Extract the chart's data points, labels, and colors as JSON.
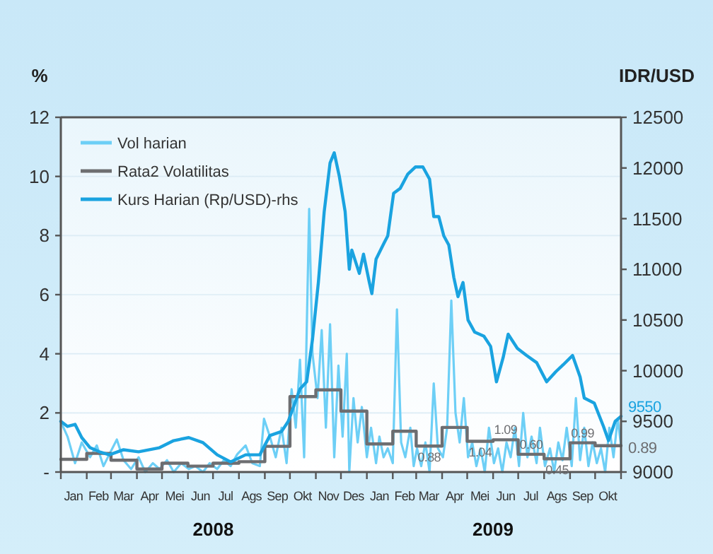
{
  "chart_data": {
    "type": "line",
    "ylabel": "%",
    "y2label": "IDR/USD",
    "xlim": [
      "2008-01-01",
      "2009-11-01"
    ],
    "xticks": [
      {
        "value": "2008-01-01",
        "label": null
      },
      {
        "value": "2008-01-16",
        "label": "Jan"
      },
      {
        "value": "2008-02-01",
        "label": null
      },
      {
        "value": "2008-02-15",
        "label": "Feb"
      },
      {
        "value": "2008-03-01",
        "label": null
      },
      {
        "value": "2008-03-16",
        "label": "Mar"
      },
      {
        "value": "2008-04-01",
        "label": null
      },
      {
        "value": "2008-04-16",
        "label": "Apr"
      },
      {
        "value": "2008-05-01",
        "label": null
      },
      {
        "value": "2008-05-16",
        "label": "Mei"
      },
      {
        "value": "2008-06-01",
        "label": null
      },
      {
        "value": "2008-06-16",
        "label": "Jun"
      },
      {
        "value": "2008-07-01",
        "label": null
      },
      {
        "value": "2008-07-16",
        "label": "Jul"
      },
      {
        "value": "2008-08-01",
        "label": null
      },
      {
        "value": "2008-08-16",
        "label": "Ags"
      },
      {
        "value": "2008-09-01",
        "label": null
      },
      {
        "value": "2008-09-16",
        "label": "Sep"
      },
      {
        "value": "2008-10-01",
        "label": null
      },
      {
        "value": "2008-10-16",
        "label": "Okt"
      },
      {
        "value": "2008-11-01",
        "label": null
      },
      {
        "value": "2008-11-16",
        "label": "Nov"
      },
      {
        "value": "2008-12-01",
        "label": null
      },
      {
        "value": "2008-12-16",
        "label": "Des"
      },
      {
        "value": "2009-01-01",
        "label": null
      },
      {
        "value": "2009-01-16",
        "label": "Jan"
      },
      {
        "value": "2009-02-01",
        "label": null
      },
      {
        "value": "2009-02-15",
        "label": "Feb"
      },
      {
        "value": "2009-03-01",
        "label": null
      },
      {
        "value": "2009-03-16",
        "label": "Mar"
      },
      {
        "value": "2009-04-01",
        "label": null
      },
      {
        "value": "2009-04-16",
        "label": "Apr"
      },
      {
        "value": "2009-05-01",
        "label": null
      },
      {
        "value": "2009-05-16",
        "label": "Mei"
      },
      {
        "value": "2009-06-01",
        "label": null
      },
      {
        "value": "2009-06-16",
        "label": "Jun"
      },
      {
        "value": "2009-07-01",
        "label": null
      },
      {
        "value": "2009-07-16",
        "label": "Jul"
      },
      {
        "value": "2009-08-01",
        "label": null
      },
      {
        "value": "2009-08-16",
        "label": "Ags"
      },
      {
        "value": "2009-09-01",
        "label": null
      },
      {
        "value": "2009-09-16",
        "label": "Sep"
      },
      {
        "value": "2009-10-01",
        "label": null
      },
      {
        "value": "2009-10-16",
        "label": "Okt"
      },
      {
        "value": "2009-11-01",
        "label": null
      }
    ],
    "ylim": [
      0,
      12
    ],
    "yticks": [
      {
        "value": 0,
        "label": "-"
      },
      2,
      4,
      6,
      8,
      10,
      12
    ],
    "y2lim": [
      9000,
      12500
    ],
    "y2ticks": [
      9000,
      9500,
      10000,
      10500,
      11000,
      11500,
      12000,
      12500
    ],
    "grid": "y",
    "legend": "top left",
    "line_style": "solid",
    "marker": "none",
    "annotations": [
      "2008",
      "2009"
    ],
    "series": [
      {
        "name": "Vol harian",
        "color": "#6dcff6",
        "x": [
          "2008-01-01",
          "2008-01-09",
          "2008-01-18",
          "2008-01-26",
          "2008-02-05",
          "2008-02-13",
          "2008-02-21",
          "2008-02-28",
          "2008-03-08",
          "2008-03-16",
          "2008-03-25",
          "2008-04-03",
          "2008-04-11",
          "2008-04-20",
          "2008-04-28",
          "2008-05-07",
          "2008-05-15",
          "2008-05-24",
          "2008-06-02",
          "2008-06-10",
          "2008-06-19",
          "2008-06-27",
          "2008-07-06",
          "2008-07-14",
          "2008-07-22",
          "2008-07-30",
          "2008-08-09",
          "2008-08-17",
          "2008-08-26",
          "2008-08-31",
          "2008-09-07",
          "2008-09-14",
          "2008-09-21",
          "2008-09-27",
          "2008-10-03",
          "2008-10-08",
          "2008-10-13",
          "2008-10-18",
          "2008-10-24",
          "2008-10-28",
          "2008-11-03",
          "2008-11-08",
          "2008-11-13",
          "2008-11-18",
          "2008-11-23",
          "2008-11-28",
          "2008-12-03",
          "2008-12-08",
          "2008-12-11",
          "2008-12-16",
          "2008-12-21",
          "2008-12-26",
          "2009-01-01",
          "2009-01-06",
          "2009-01-12",
          "2009-01-16",
          "2009-01-21",
          "2009-01-26",
          "2009-02-01",
          "2009-02-06",
          "2009-02-11",
          "2009-02-16",
          "2009-02-22",
          "2009-02-26",
          "2009-03-02",
          "2009-03-07",
          "2009-03-12",
          "2009-03-17",
          "2009-03-22",
          "2009-03-27",
          "2009-04-02",
          "2009-04-07",
          "2009-04-12",
          "2009-04-17",
          "2009-04-22",
          "2009-04-27",
          "2009-05-02",
          "2009-05-07",
          "2009-05-12",
          "2009-05-17",
          "2009-05-22",
          "2009-05-27",
          "2009-06-02",
          "2009-06-07",
          "2009-06-12",
          "2009-06-17",
          "2009-06-22",
          "2009-06-27",
          "2009-07-02",
          "2009-07-07",
          "2009-07-12",
          "2009-07-17",
          "2009-07-23",
          "2009-07-27",
          "2009-08-02",
          "2009-08-08",
          "2009-08-13",
          "2009-08-18",
          "2009-08-23",
          "2009-08-28",
          "2009-09-03",
          "2009-09-08",
          "2009-09-13",
          "2009-09-18",
          "2009-09-23",
          "2009-09-28",
          "2009-10-03",
          "2009-10-08",
          "2009-10-13",
          "2009-10-18",
          "2009-10-23",
          "2009-10-28",
          "2009-11-01"
        ],
        "values": [
          1.7,
          1.2,
          0.3,
          1.0,
          0.5,
          0.9,
          0.2,
          0.6,
          1.1,
          0.4,
          0.1,
          0.5,
          0.0,
          0.3,
          0.1,
          0.4,
          0.0,
          0.3,
          0.1,
          0.2,
          0.0,
          0.3,
          0.1,
          0.4,
          0.2,
          0.6,
          0.9,
          0.3,
          0.2,
          1.8,
          1.2,
          0.5,
          1.5,
          0.3,
          2.8,
          1.5,
          3.8,
          0.5,
          8.9,
          4.0,
          2.5,
          4.8,
          1.5,
          5.0,
          0.5,
          3.6,
          1.2,
          4.0,
          0.0,
          2.5,
          1.0,
          2.2,
          0.5,
          1.5,
          0.3,
          1.2,
          0.5,
          0.8,
          0.3,
          5.5,
          1.0,
          0.5,
          1.5,
          0.2,
          0.8,
          0.2,
          1.0,
          0.0,
          3.0,
          0.8,
          0.5,
          1.5,
          5.8,
          2.0,
          1.0,
          2.5,
          0.5,
          1.0,
          0.2,
          0.8,
          0.0,
          1.5,
          0.3,
          0.8,
          0.0,
          1.0,
          0.5,
          1.5,
          0.2,
          2.0,
          0.5,
          1.2,
          0.3,
          1.5,
          0.2,
          0.8,
          0.0,
          1.0,
          0.4,
          1.5,
          0.2,
          2.5,
          0.4,
          1.5,
          0.2,
          1.0,
          0.3,
          0.8,
          0.0,
          1.5,
          0.5,
          1.8,
          0.9
        ]
      },
      {
        "name": "Rata2 Volatilitas",
        "type": "step",
        "color": "#6d6e71",
        "x": [
          "2008-01-01",
          "2008-02-01",
          "2008-03-01",
          "2008-04-01",
          "2008-05-01",
          "2008-06-01",
          "2008-07-01",
          "2008-08-01",
          "2008-09-01",
          "2008-10-01",
          "2008-11-01",
          "2008-12-01",
          "2009-01-01",
          "2009-02-01",
          "2009-03-01",
          "2009-04-01",
          "2009-05-01",
          "2009-06-01",
          "2009-07-01",
          "2009-08-01",
          "2009-09-01",
          "2009-10-01",
          "2009-11-01"
        ],
        "values": [
          0.43,
          0.63,
          0.4,
          0.1,
          0.3,
          0.2,
          0.3,
          0.35,
          0.87,
          2.55,
          2.78,
          2.06,
          0.95,
          1.38,
          0.88,
          1.51,
          1.04,
          1.09,
          0.6,
          0.45,
          0.99,
          0.89,
          0.89
        ],
        "value_labels": [
          null,
          null,
          null,
          null,
          null,
          null,
          null,
          null,
          null,
          null,
          null,
          null,
          null,
          null,
          "0.88",
          null,
          "1.04",
          "1.09",
          "0.60",
          "0.45",
          "0.99",
          null,
          "0.89"
        ]
      },
      {
        "name": "Kurs Harian (Rp/USD)-rhs",
        "axis": "y2",
        "color": "#1aa3e0",
        "x": [
          "2008-01-01",
          "2008-01-09",
          "2008-01-18",
          "2008-01-26",
          "2008-02-05",
          "2008-02-16",
          "2008-02-28",
          "2008-03-16",
          "2008-04-03",
          "2008-04-28",
          "2008-05-15",
          "2008-06-02",
          "2008-06-19",
          "2008-07-06",
          "2008-07-22",
          "2008-08-09",
          "2008-08-26",
          "2008-09-07",
          "2008-09-21",
          "2008-09-29",
          "2008-10-13",
          "2008-10-21",
          "2008-10-28",
          "2008-11-04",
          "2008-11-11",
          "2008-11-18",
          "2008-11-23",
          "2008-11-29",
          "2008-12-06",
          "2008-12-11",
          "2008-12-14",
          "2008-12-23",
          "2008-12-28",
          "2009-01-04",
          "2009-01-07",
          "2009-01-12",
          "2009-01-21",
          "2009-01-26",
          "2009-02-02",
          "2009-02-10",
          "2009-02-19",
          "2009-02-28",
          "2009-03-09",
          "2009-03-17",
          "2009-03-22",
          "2009-03-28",
          "2009-04-03",
          "2009-04-09",
          "2009-04-15",
          "2009-04-20",
          "2009-04-26",
          "2009-05-02",
          "2009-05-10",
          "2009-05-21",
          "2009-05-29",
          "2009-06-05",
          "2009-06-13",
          "2009-06-19",
          "2009-06-30",
          "2009-07-11",
          "2009-07-23",
          "2009-08-04",
          "2009-08-15",
          "2009-08-24",
          "2009-09-04",
          "2009-09-13",
          "2009-09-18",
          "2009-09-30",
          "2009-10-11",
          "2009-10-17",
          "2009-10-25",
          "2009-11-01"
        ],
        "values": [
          9500,
          9450,
          9470,
          9340,
          9240,
          9200,
          9170,
          9220,
          9200,
          9240,
          9310,
          9340,
          9290,
          9170,
          9100,
          9170,
          9170,
          9360,
          9400,
          9500,
          9820,
          9890,
          10310,
          10870,
          11570,
          12050,
          12150,
          11920,
          11570,
          11000,
          11190,
          10960,
          11150,
          10870,
          10760,
          11100,
          11250,
          11330,
          11750,
          11800,
          11940,
          12010,
          12010,
          11890,
          11520,
          11520,
          11330,
          11240,
          10920,
          10730,
          10870,
          10500,
          10380,
          10340,
          10240,
          9890,
          10130,
          10360,
          10220,
          10150,
          10080,
          9890,
          9990,
          10060,
          10150,
          9940,
          9730,
          9680,
          9450,
          9310,
          9500,
          9550
        ],
        "value_labels": [
          null,
          null,
          null,
          null,
          null,
          null,
          null,
          null,
          null,
          null,
          null,
          null,
          null,
          null,
          null,
          null,
          null,
          null,
          null,
          null,
          null,
          null,
          null,
          null,
          null,
          null,
          null,
          null,
          null,
          null,
          null,
          null,
          null,
          null,
          null,
          null,
          null,
          null,
          null,
          null,
          null,
          null,
          null,
          null,
          null,
          null,
          null,
          null,
          null,
          null,
          null,
          null,
          null,
          null,
          null,
          null,
          null,
          null,
          null,
          null,
          null,
          null,
          null,
          null,
          null,
          null,
          null,
          null,
          null,
          null,
          null,
          "9550"
        ]
      }
    ]
  }
}
